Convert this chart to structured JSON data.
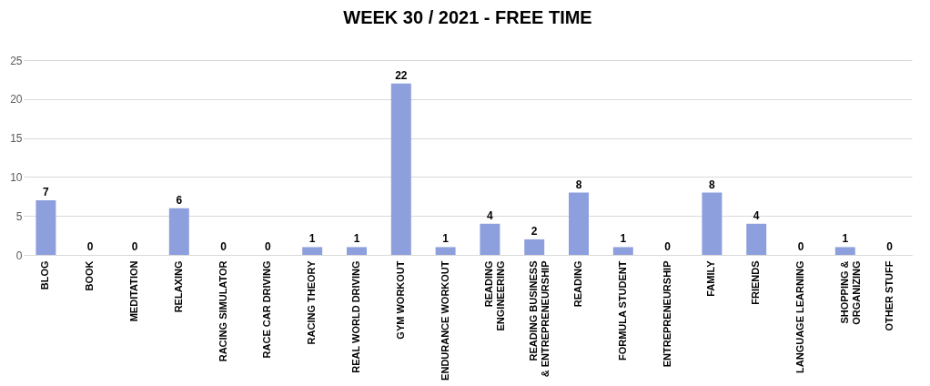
{
  "chart_data": {
    "type": "bar",
    "title": "WEEK 30 / 2021 - FREE TIME",
    "categories": [
      "BLOG",
      "BOOK",
      "MEDITATION",
      "RELAXING",
      "RACING SIMULATOR",
      "RACE CAR DRIVING",
      "RACING THEORY",
      "REAL WORLD DRIVING",
      "GYM WORKOUT",
      "ENDURANCE WORKOUT",
      "READING ENGINEERING",
      "READING BUSINESS & ENTREPRENEURSHIP",
      "READING",
      "FORMULA STUDENT",
      "ENTREPRENEURSHIP",
      "FAMILY",
      "FRIENDS",
      "LANGUAGE LEARNING",
      "SHOPPING & ORGANIZING",
      "OTHER STUFF"
    ],
    "values": [
      7,
      0,
      0,
      6,
      0,
      0,
      1,
      1,
      22,
      1,
      4,
      2,
      8,
      1,
      0,
      8,
      4,
      0,
      1,
      0
    ],
    "color": "#8d9fdc",
    "ylim": [
      0,
      25
    ],
    "yticks": [
      0,
      5,
      10,
      15,
      20,
      25
    ],
    "grid": "y",
    "data_labels": true
  }
}
